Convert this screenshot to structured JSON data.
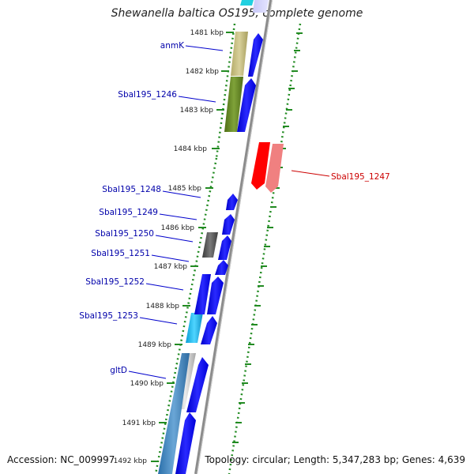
{
  "title": "Shewanella baltica OS195, complete genome",
  "accession": "Accession: NC_009997",
  "topology": "Topology: circular; Length: 5,347,283 bp; Genes: 4,639",
  "colors": {
    "forward_cds": "#0000ff",
    "reverse_cds": "#ff0000",
    "reverse_cds_light": "#f08080",
    "backbone": "#8c8c8c",
    "tick": "#228b22",
    "label_forward": "#0000aa",
    "label_reverse": "#cc0000"
  },
  "ticks": [
    {
      "label": "1481 kbp"
    },
    {
      "label": "1482 kbp"
    },
    {
      "label": "1483 kbp"
    },
    {
      "label": "1484 kbp"
    },
    {
      "label": "1485 kbp"
    },
    {
      "label": "1486 kbp"
    },
    {
      "label": "1487 kbp"
    },
    {
      "label": "1488 kbp"
    },
    {
      "label": "1489 kbp"
    },
    {
      "label": "1490 kbp"
    },
    {
      "label": "1491 kbp"
    },
    {
      "label": "1492 kbp"
    }
  ],
  "gene_labels": [
    {
      "name": "anmK"
    },
    {
      "name": "Sbal195_1246"
    },
    {
      "name": "Sbal195_1247"
    },
    {
      "name": "Sbal195_1248"
    },
    {
      "name": "Sbal195_1249"
    },
    {
      "name": "Sbal195_1250"
    },
    {
      "name": "Sbal195_1251"
    },
    {
      "name": "Sbal195_1252"
    },
    {
      "name": "Sbal195_1253"
    },
    {
      "name": "gltD"
    }
  ]
}
